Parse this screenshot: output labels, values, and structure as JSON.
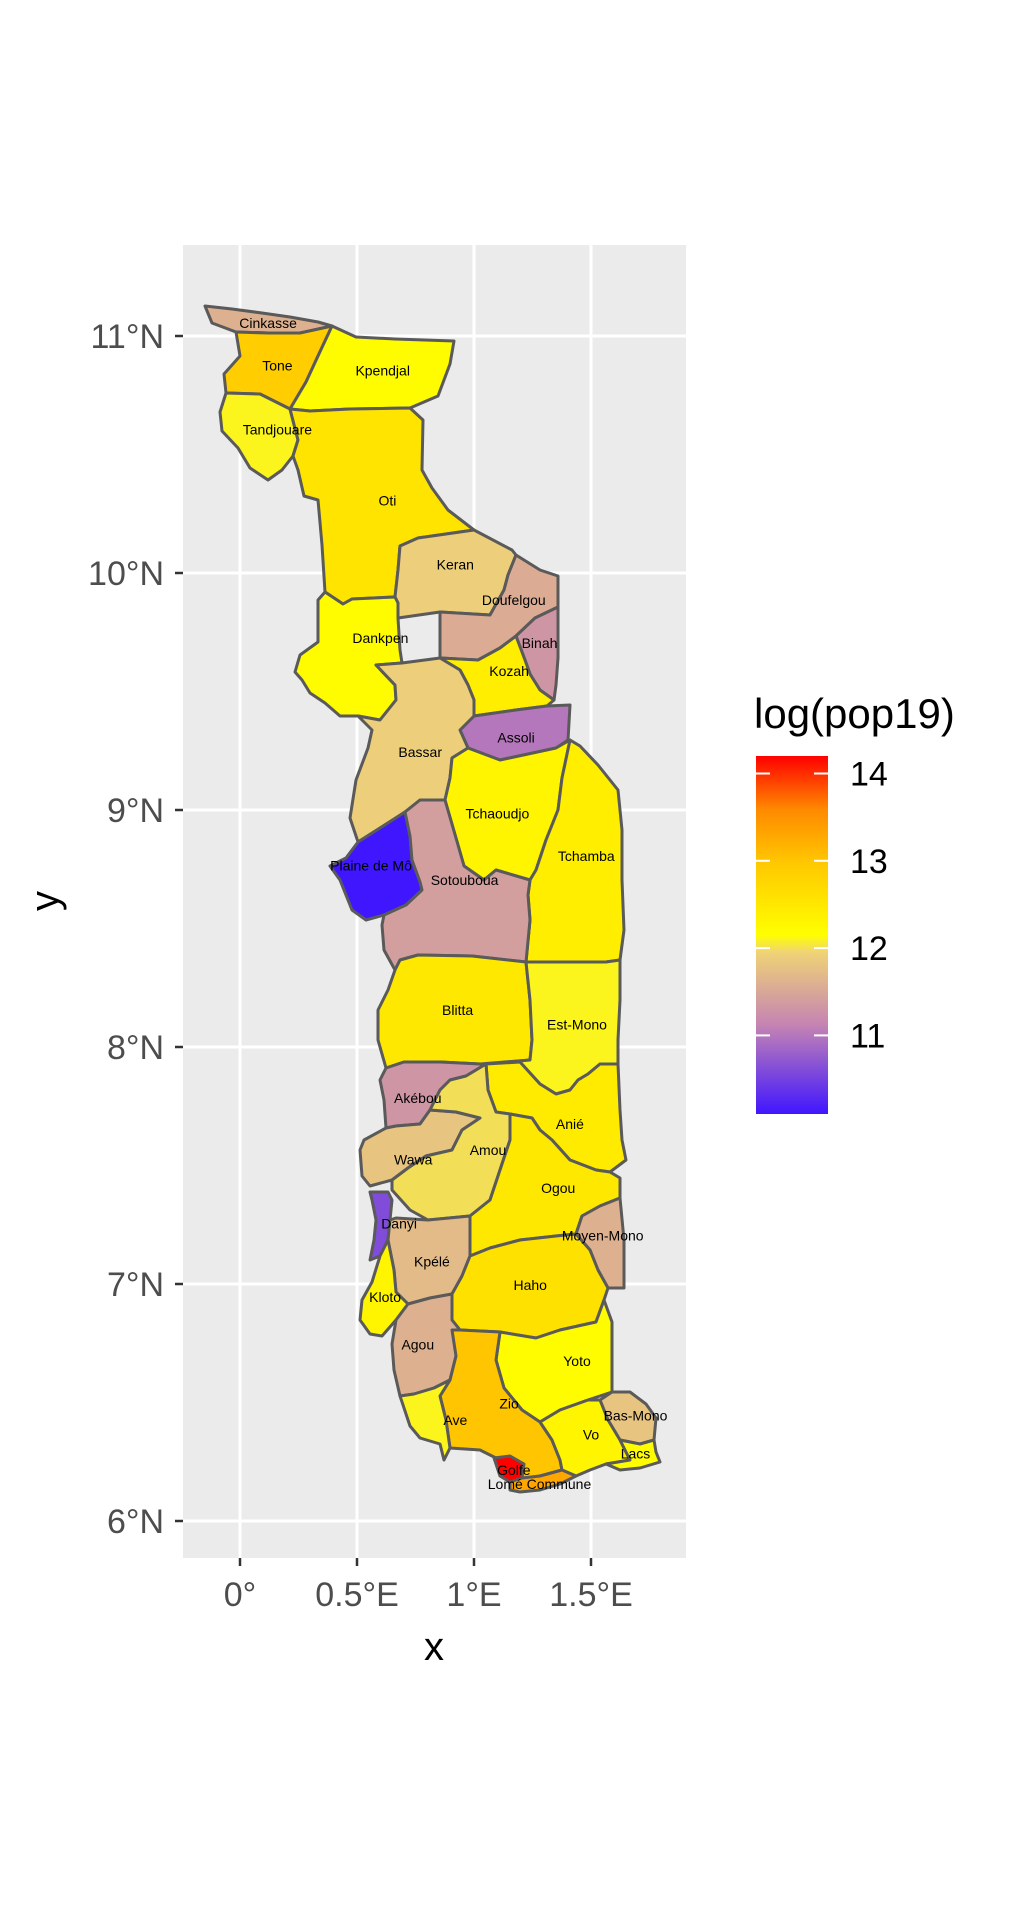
{
  "chart_data": {
    "type": "choropleth",
    "xlabel": "x",
    "ylabel": "y",
    "x_ticks": [
      "0°",
      "0.5°E",
      "1°E",
      "1.5°E"
    ],
    "y_ticks": [
      "6°N",
      "7°N",
      "8°N",
      "9°N",
      "10°N",
      "11°N"
    ],
    "xlim": [
      -0.25,
      1.88
    ],
    "ylim": [
      5.87,
      11.37
    ],
    "x_tick_values": [
      0,
      0.5,
      1.0,
      1.5
    ],
    "y_tick_values": [
      6,
      7,
      8,
      9,
      10,
      11
    ],
    "legend": {
      "title": "log(pop19)",
      "placement": "right",
      "ticks": [
        "14",
        "13",
        "12",
        "11"
      ],
      "tick_values": [
        14,
        13,
        12,
        11
      ],
      "range": [
        10.1,
        14.2
      ],
      "palette": [
        "#4016FF",
        "#C584B2",
        "#EFD277",
        "#FFFF00",
        "#FFC800",
        "#FF8A00",
        "#FF0000"
      ]
    },
    "regions": [
      {
        "name": "Cinkasse",
        "lon": 0.12,
        "lat": 11.05,
        "value": 11.6
      },
      {
        "name": "Tone",
        "lon": 0.16,
        "lat": 10.87,
        "value": 12.9
      },
      {
        "name": "Kpendjal",
        "lon": 0.61,
        "lat": 10.85,
        "value": 12.2
      },
      {
        "name": "Tandjouare",
        "lon": 0.16,
        "lat": 10.6,
        "value": 12.1
      },
      {
        "name": "Oti",
        "lon": 0.63,
        "lat": 10.3,
        "value": 12.55
      },
      {
        "name": "Keran",
        "lon": 0.92,
        "lat": 10.03,
        "value": 11.9
      },
      {
        "name": "Doufelgou",
        "lon": 1.17,
        "lat": 9.88,
        "value": 11.55
      },
      {
        "name": "Binah",
        "lon": 1.28,
        "lat": 9.7,
        "value": 11.3
      },
      {
        "name": "Dankpen",
        "lon": 0.6,
        "lat": 9.72,
        "value": 12.2
      },
      {
        "name": "Kozah",
        "lon": 1.15,
        "lat": 9.58,
        "value": 12.4
      },
      {
        "name": "Assoli",
        "lon": 1.18,
        "lat": 9.3,
        "value": 11.0
      },
      {
        "name": "Bassar",
        "lon": 0.77,
        "lat": 9.24,
        "value": 11.9
      },
      {
        "name": "Tchaoudjo",
        "lon": 1.1,
        "lat": 8.98,
        "value": 12.3
      },
      {
        "name": "Tchamba",
        "lon": 1.48,
        "lat": 8.8,
        "value": 12.4
      },
      {
        "name": "Plaine de Mô",
        "lon": 0.56,
        "lat": 8.76,
        "value": 10.1
      },
      {
        "name": "Sotouboua",
        "lon": 0.96,
        "lat": 8.7,
        "value": 11.4
      },
      {
        "name": "Blitta",
        "lon": 0.93,
        "lat": 8.15,
        "value": 12.5
      },
      {
        "name": "Est-Mono",
        "lon": 1.44,
        "lat": 8.09,
        "value": 12.1
      },
      {
        "name": "Akébou",
        "lon": 0.76,
        "lat": 7.78,
        "value": 11.3
      },
      {
        "name": "Anié",
        "lon": 1.41,
        "lat": 7.67,
        "value": 12.45
      },
      {
        "name": "Wawa",
        "lon": 0.74,
        "lat": 7.52,
        "value": 11.8
      },
      {
        "name": "Amou",
        "lon": 1.06,
        "lat": 7.56,
        "value": 12.0
      },
      {
        "name": "Ogou",
        "lon": 1.36,
        "lat": 7.4,
        "value": 12.5
      },
      {
        "name": "Danyi",
        "lon": 0.68,
        "lat": 7.25,
        "value": 10.6
      },
      {
        "name": "Moyen-Mono",
        "lon": 1.55,
        "lat": 7.2,
        "value": 11.6
      },
      {
        "name": "Kpélé",
        "lon": 0.82,
        "lat": 7.09,
        "value": 11.7
      },
      {
        "name": "Haho",
        "lon": 1.24,
        "lat": 6.99,
        "value": 12.6
      },
      {
        "name": "Kloto",
        "lon": 0.62,
        "lat": 6.94,
        "value": 12.3
      },
      {
        "name": "Agou",
        "lon": 0.76,
        "lat": 6.74,
        "value": 11.6
      },
      {
        "name": "Yoto",
        "lon": 1.44,
        "lat": 6.67,
        "value": 12.2
      },
      {
        "name": "Zio",
        "lon": 1.15,
        "lat": 6.49,
        "value": 13.0
      },
      {
        "name": "Ave",
        "lon": 0.92,
        "lat": 6.42,
        "value": 12.1
      },
      {
        "name": "Bas-Mono",
        "lon": 1.69,
        "lat": 6.44,
        "value": 11.8
      },
      {
        "name": "Vo",
        "lon": 1.5,
        "lat": 6.36,
        "value": 12.3
      },
      {
        "name": "Lacs",
        "lon": 1.69,
        "lat": 6.28,
        "value": 12.2
      },
      {
        "name": "Golfe",
        "lon": 1.17,
        "lat": 6.21,
        "value": 14.2
      },
      {
        "name": "Lomé Commune",
        "lon": 1.28,
        "lat": 6.15,
        "value": 13.3
      }
    ]
  }
}
